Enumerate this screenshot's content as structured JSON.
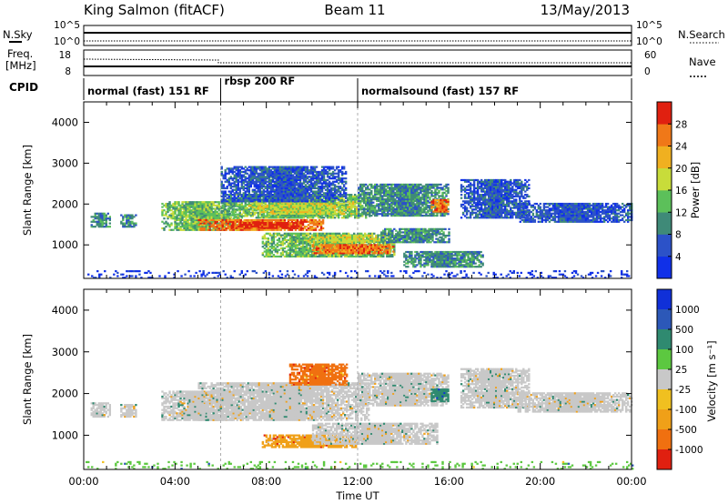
{
  "header": {
    "radar": "King Salmon (fitACF)",
    "beam": "Beam 11",
    "date": "13/May/2013"
  },
  "noise_panel": {
    "left_label": "N.Sky",
    "right_label": "N.Search",
    "left_ticks": [
      "10^5",
      "10^0"
    ],
    "right_ticks": [
      "10^5",
      "10^0"
    ]
  },
  "freq_panel": {
    "left_label_1": "Freq.",
    "left_label_2": "[MHz]",
    "right_label": "Nave",
    "left_ticks": [
      "18",
      "8"
    ],
    "right_ticks": [
      "60",
      "0"
    ]
  },
  "cpid": {
    "label": "CPID",
    "segments": [
      {
        "name": "normal (fast) 151 RF",
        "start_hour": 0,
        "end_hour": 6.0
      },
      {
        "name": "rbsp 200 RF",
        "start_hour": 6.0,
        "end_hour": 12.0
      },
      {
        "name": "normalsound (fast) 157 RF",
        "start_hour": 12.0,
        "end_hour": 24.0
      }
    ]
  },
  "chart_data": [
    {
      "type": "heatmap",
      "title": "Power",
      "xlabel": "Time UT",
      "ylabel": "Slant Range [km]",
      "xlim_hours": [
        0,
        24
      ],
      "x_ticks": [
        "00:00",
        "04:00",
        "08:00",
        "12:00",
        "16:00",
        "20:00",
        "00:00"
      ],
      "ylim_km": [
        180,
        4500
      ],
      "y_ticks": [
        1000,
        2000,
        3000,
        4000
      ],
      "colorbar": {
        "label": "Power [dB]",
        "ticks": [
          "4",
          "8",
          "12",
          "16",
          "20",
          "24",
          "28"
        ],
        "colors": [
          "#1030e8",
          "#2c52c8",
          "#3f8a78",
          "#5cc05a",
          "#c8dc3a",
          "#f0b020",
          "#f07818",
          "#e02010"
        ]
      },
      "echo_regions": [
        {
          "t0": 0.3,
          "t1": 1.1,
          "r0": 1430,
          "r1": 1780,
          "level": 2
        },
        {
          "t0": 1.6,
          "t1": 2.3,
          "r0": 1430,
          "r1": 1750,
          "level": 2
        },
        {
          "t0": 3.4,
          "t1": 6.8,
          "r0": 1350,
          "r1": 2050,
          "level": 3
        },
        {
          "t0": 5.0,
          "t1": 10.5,
          "r0": 1350,
          "r1": 1620,
          "level": 6
        },
        {
          "t0": 6.5,
          "t1": 9.5,
          "r0": 1400,
          "r1": 1560,
          "level": 7
        },
        {
          "t0": 6.0,
          "t1": 12.5,
          "r0": 1650,
          "r1": 2250,
          "level": 3
        },
        {
          "t0": 7.2,
          "t1": 12.0,
          "r0": 1750,
          "r1": 2050,
          "level": 4
        },
        {
          "t0": 12.0,
          "t1": 16.0,
          "r0": 1700,
          "r1": 2500,
          "level": 2
        },
        {
          "t0": 6.0,
          "t1": 11.5,
          "r0": 2050,
          "r1": 2900,
          "level": 1
        },
        {
          "t0": 7.8,
          "t1": 13.6,
          "r0": 700,
          "r1": 1300,
          "level": 3
        },
        {
          "t0": 10.0,
          "t1": 13.6,
          "r0": 780,
          "r1": 1000,
          "level": 6
        },
        {
          "t0": 9.8,
          "t1": 13.2,
          "r0": 1050,
          "r1": 1250,
          "level": 4
        },
        {
          "t0": 13.0,
          "t1": 16.0,
          "r0": 1050,
          "r1": 1400,
          "level": 2
        },
        {
          "t0": 15.2,
          "t1": 16.0,
          "r0": 1800,
          "r1": 2100,
          "level": 6
        },
        {
          "t0": 16.5,
          "t1": 19.5,
          "r0": 1650,
          "r1": 2600,
          "level": 1
        },
        {
          "t0": 19.0,
          "t1": 24.0,
          "r0": 1550,
          "r1": 2000,
          "level": 1
        },
        {
          "t0": 14.0,
          "t1": 17.5,
          "r0": 450,
          "r1": 850,
          "level": 2
        },
        {
          "t0": 0.0,
          "t1": 24.0,
          "r0": 180,
          "r1": 380,
          "level": 0
        }
      ]
    },
    {
      "type": "heatmap",
      "title": "Velocity",
      "xlabel": "Time UT",
      "ylabel": "Slant Range [km]",
      "xlim_hours": [
        0,
        24
      ],
      "x_ticks": [
        "00:00",
        "04:00",
        "08:00",
        "12:00",
        "16:00",
        "20:00",
        "00:00"
      ],
      "ylim_km": [
        180,
        4500
      ],
      "y_ticks": [
        1000,
        2000,
        3000,
        4000
      ],
      "colorbar": {
        "label": "Velocity [m s⁻¹]",
        "ticks": [
          "1000",
          "500",
          "100",
          "25",
          "-25",
          "-100",
          "-500",
          "-1000"
        ],
        "colors": [
          "#1030d8",
          "#2c58b8",
          "#2f8a70",
          "#5cc840",
          "#c8c8c8",
          "#f0c020",
          "#f0a018",
          "#f07010",
          "#e02010"
        ]
      },
      "echo_regions": [
        {
          "t0": 0.3,
          "t1": 1.1,
          "r0": 1430,
          "r1": 1780,
          "level": 4
        },
        {
          "t0": 1.6,
          "t1": 2.3,
          "r0": 1430,
          "r1": 1750,
          "level": 4
        },
        {
          "t0": 3.4,
          "t1": 6.8,
          "r0": 1350,
          "r1": 2050,
          "level": 4
        },
        {
          "t0": 5.0,
          "t1": 12.5,
          "r0": 1350,
          "r1": 2250,
          "level": 4
        },
        {
          "t0": 12.0,
          "t1": 16.0,
          "r0": 1700,
          "r1": 2500,
          "level": 4
        },
        {
          "t0": 15.2,
          "t1": 16.0,
          "r0": 1800,
          "r1": 2100,
          "level": 2
        },
        {
          "t0": 7.8,
          "t1": 12.0,
          "r0": 700,
          "r1": 1000,
          "level": 6
        },
        {
          "t0": 10.0,
          "t1": 15.5,
          "r0": 780,
          "r1": 1300,
          "level": 4
        },
        {
          "t0": 9.0,
          "t1": 11.5,
          "r0": 2200,
          "r1": 2700,
          "level": 7
        },
        {
          "t0": 16.5,
          "t1": 19.5,
          "r0": 1650,
          "r1": 2600,
          "level": 4
        },
        {
          "t0": 19.0,
          "t1": 24.0,
          "r0": 1550,
          "r1": 2000,
          "level": 4
        },
        {
          "t0": 0.0,
          "t1": 24.0,
          "r0": 180,
          "r1": 380,
          "level": 3
        }
      ]
    }
  ]
}
